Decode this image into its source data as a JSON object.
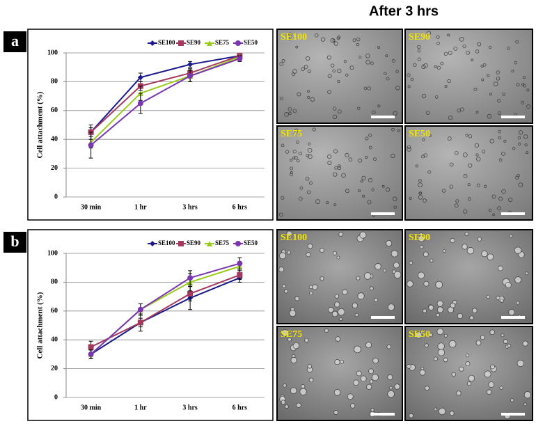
{
  "header": "After 3 hrs",
  "panels": [
    {
      "label": "a",
      "images": [
        "SE100",
        "SE90",
        "SE75",
        "SE50"
      ]
    },
    {
      "label": "b",
      "images": [
        "SE100",
        "SE90",
        "SE75",
        "SE50"
      ]
    }
  ],
  "chart_data": [
    {
      "type": "line",
      "y_label": "Cell attachment (%)",
      "categories": [
        "30 min",
        "1 hr",
        "3 hrs",
        "6 hrs"
      ],
      "ylim": [
        0,
        100
      ],
      "yticks": [
        0,
        20,
        40,
        60,
        80,
        100
      ],
      "grid": true,
      "legend": "top-right",
      "series": [
        {
          "name": "SE100",
          "color": "#1a1a8c",
          "marker": "diamond",
          "values": [
            45,
            83,
            92,
            98
          ],
          "errors": [
            3,
            3,
            2,
            1
          ]
        },
        {
          "name": "SE90",
          "color": "#a33a5e",
          "marker": "square",
          "values": [
            45,
            77,
            86,
            98
          ],
          "errors": [
            5,
            3,
            3,
            1
          ]
        },
        {
          "name": "SE75",
          "color": "#99cc1a",
          "marker": "triangle",
          "values": [
            38,
            72,
            84,
            97
          ],
          "errors": [
            4,
            5,
            4,
            1
          ]
        },
        {
          "name": "SE50",
          "color": "#7a35b0",
          "marker": "circle",
          "values": [
            36,
            65,
            84,
            96
          ],
          "errors": [
            9,
            7,
            4,
            2
          ]
        }
      ]
    },
    {
      "type": "line",
      "y_label": "Cell attachment (%)",
      "categories": [
        "30 min",
        "1 hr",
        "3 hrs",
        "6 hrs"
      ],
      "ylim": [
        0,
        100
      ],
      "yticks": [
        0,
        20,
        40,
        60,
        80,
        100
      ],
      "grid": true,
      "legend": "top-right",
      "series": [
        {
          "name": "SE100",
          "color": "#1a1a8c",
          "marker": "diamond",
          "values": [
            30,
            52,
            69,
            83
          ],
          "errors": [
            3,
            3,
            8,
            3
          ]
        },
        {
          "name": "SE90",
          "color": "#a33a5e",
          "marker": "square",
          "values": [
            35,
            52,
            72,
            85
          ],
          "errors": [
            4,
            6,
            5,
            3
          ]
        },
        {
          "name": "SE75",
          "color": "#99cc1a",
          "marker": "triangle",
          "values": [
            30,
            61,
            80,
            91
          ],
          "errors": [
            3,
            4,
            6,
            3
          ]
        },
        {
          "name": "SE50",
          "color": "#7a35b0",
          "marker": "circle",
          "values": [
            30,
            61,
            83,
            93
          ],
          "errors": [
            3,
            4,
            5,
            4
          ]
        }
      ]
    }
  ]
}
